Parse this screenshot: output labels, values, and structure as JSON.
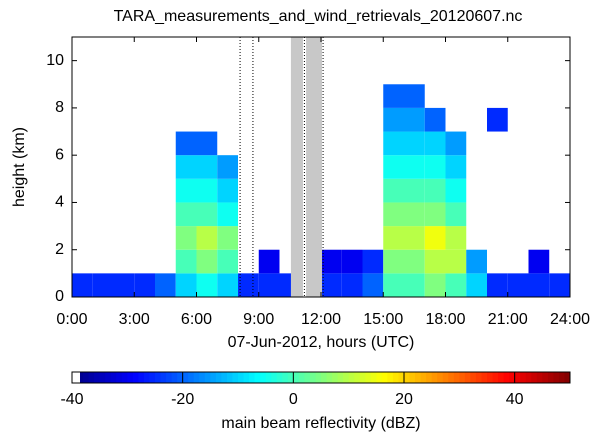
{
  "chart_data": {
    "type": "heatmap",
    "title": "TARA_measurements_and_wind_retrievals_20120607.nc",
    "x_label": "07-Jun-2012, hours (UTC)",
    "y_label": "height (km)",
    "colorbar_label": "main beam reflectivity (dBZ)",
    "x_edges": [
      0,
      1,
      2,
      3,
      4,
      5,
      6,
      7,
      8,
      9,
      10,
      11,
      12,
      13,
      14,
      15,
      16,
      17,
      18,
      19,
      20,
      21,
      22,
      23,
      24
    ],
    "y_edges": [
      0,
      1,
      2,
      3,
      4,
      5,
      6,
      7,
      8,
      9,
      10
    ],
    "z": [
      [
        -25,
        -25,
        -25,
        -25,
        -20,
        -10,
        -5,
        -10,
        -25,
        -25,
        -25,
        null,
        -25,
        -25,
        -20,
        0,
        0,
        5,
        0,
        -10,
        -25,
        -25,
        -25,
        -25
      ],
      [
        null,
        null,
        null,
        null,
        null,
        0,
        5,
        0,
        null,
        -30,
        null,
        null,
        -30,
        -30,
        -25,
        5,
        5,
        10,
        10,
        -15,
        null,
        null,
        -30,
        null
      ],
      [
        null,
        null,
        null,
        null,
        null,
        5,
        10,
        5,
        null,
        null,
        null,
        null,
        null,
        null,
        null,
        10,
        10,
        15,
        10,
        null,
        null,
        null,
        null,
        null
      ],
      [
        null,
        null,
        null,
        null,
        null,
        0,
        0,
        -5,
        null,
        null,
        null,
        null,
        null,
        null,
        null,
        5,
        5,
        5,
        0,
        null,
        null,
        null,
        null,
        null
      ],
      [
        null,
        null,
        null,
        null,
        null,
        -5,
        -5,
        -10,
        null,
        null,
        null,
        null,
        null,
        null,
        null,
        0,
        0,
        0,
        -5,
        null,
        null,
        null,
        null,
        null
      ],
      [
        null,
        null,
        null,
        null,
        null,
        -10,
        -10,
        -15,
        null,
        null,
        null,
        null,
        null,
        null,
        null,
        -5,
        -5,
        -5,
        -10,
        null,
        null,
        null,
        null,
        null
      ],
      [
        null,
        null,
        null,
        null,
        null,
        -20,
        -20,
        null,
        null,
        null,
        null,
        null,
        null,
        null,
        null,
        -10,
        -10,
        -10,
        -15,
        null,
        null,
        null,
        null,
        null
      ],
      [
        null,
        null,
        null,
        null,
        null,
        null,
        null,
        null,
        null,
        null,
        null,
        null,
        null,
        null,
        null,
        -15,
        -15,
        -20,
        null,
        null,
        -25,
        null,
        null,
        null
      ],
      [
        null,
        null,
        null,
        null,
        null,
        null,
        null,
        null,
        null,
        null,
        null,
        null,
        null,
        null,
        null,
        -20,
        -20,
        null,
        null,
        null,
        null,
        null,
        null,
        null
      ],
      [
        null,
        null,
        null,
        null,
        null,
        null,
        null,
        null,
        null,
        null,
        null,
        null,
        null,
        null,
        null,
        null,
        null,
        null,
        null,
        null,
        null,
        null,
        null,
        null
      ]
    ],
    "shaded": [
      [
        10.55,
        11.13
      ],
      [
        11.28,
        12.05
      ]
    ],
    "vlines": [
      8.1,
      8.72,
      11.2,
      12.1
    ],
    "xlim": [
      0,
      24
    ],
    "xticks": [
      {
        "value": 0,
        "label": "0:00"
      },
      {
        "value": 3,
        "label": "3:00"
      },
      {
        "value": 6,
        "label": "6:00"
      },
      {
        "value": 9,
        "label": "9:00"
      },
      {
        "value": 12,
        "label": "12:00"
      },
      {
        "value": 15,
        "label": "15:00"
      },
      {
        "value": 18,
        "label": "18:00"
      },
      {
        "value": 21,
        "label": "21:00"
      },
      {
        "value": 24,
        "label": "24:00"
      }
    ],
    "ylim": [
      0,
      11
    ],
    "yticks": [
      0,
      2,
      4,
      6,
      8,
      10
    ],
    "clim": [
      -40,
      50
    ],
    "cticks": [
      -40,
      -20,
      0,
      20,
      40
    ],
    "colormap": "jet"
  }
}
